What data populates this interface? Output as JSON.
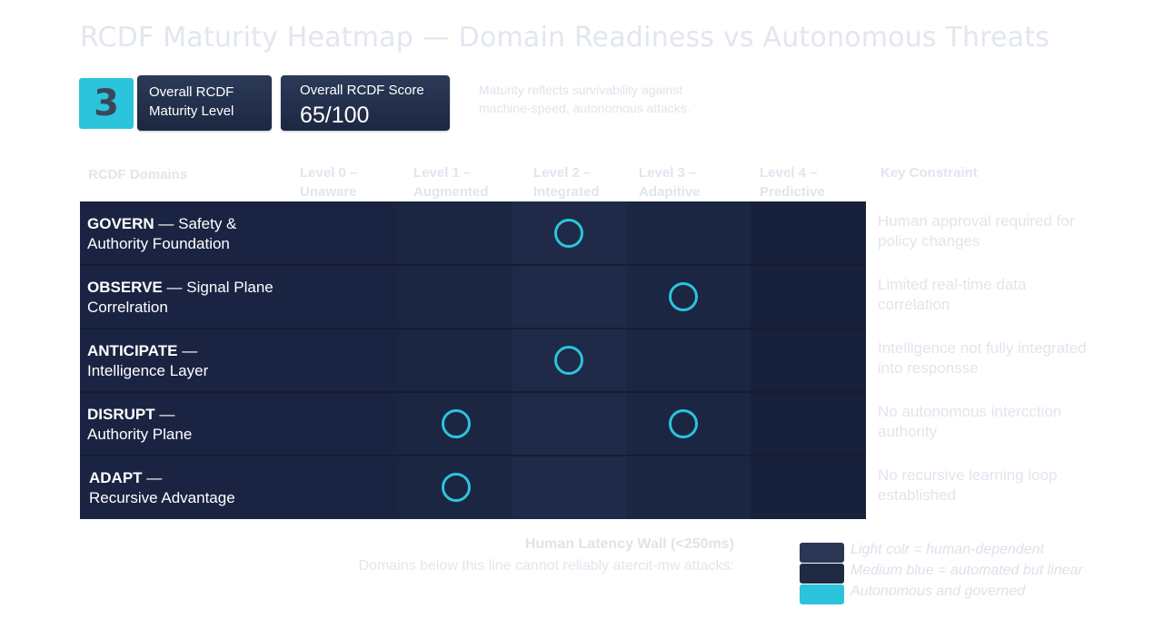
{
  "title": "RCDF Maturity Heatmap — Domain Readiness vs Autonomous Threats",
  "summary": {
    "level_value": "3",
    "level_label": "Overall RCDF Maturity Level",
    "score_label": "Overall RCDF Score",
    "score_value": "65/100",
    "note": "Maturity reflects survivability against machine-speed, autonomous attacks."
  },
  "colors": {
    "accent": "#2bc4dc",
    "grid": "#1a2440",
    "card": "#1c2742"
  },
  "headers": {
    "domains": "RCDF Domains",
    "constraint": "Key Constraint"
  },
  "chart_data": {
    "type": "table",
    "levels": [
      {
        "name": "Level 0 –",
        "sub": "Unaware"
      },
      {
        "name": "Level 1 –",
        "sub": "Augmented"
      },
      {
        "name": "Level 2 –",
        "sub": "Integrated"
      },
      {
        "name": "Level 3 –",
        "sub": "Adapitive"
      },
      {
        "name": "Level 4 –",
        "sub": "Predictive"
      }
    ],
    "domains": [
      {
        "name": "GOVERN",
        "desc": " — Safety &",
        "desc2": "Authority Foundation",
        "levels": [
          2
        ],
        "constraint": "Human approval required for policy changes"
      },
      {
        "name": "OBSERVE",
        "desc": " — Signal Plane",
        "desc2": "Correlration",
        "levels": [
          3
        ],
        "constraint": "Limited real-time data correlation"
      },
      {
        "name": "ANTICIPATE",
        "desc": " —",
        "desc2": "Intelligence Layer",
        "levels": [
          2
        ],
        "constraint": "Intelligence not fully integrated into responsse"
      },
      {
        "name": "DISRUPT",
        "desc": " —",
        "desc2": "Authority Plane",
        "levels": [
          1,
          3
        ],
        "constraint": "No autonomous intercction authority"
      },
      {
        "name": "ADAPT",
        "desc": " —",
        "desc2": "Recursive Advantage",
        "levels": [
          1
        ],
        "constraint": "No recursive learning loop established"
      }
    ]
  },
  "wall": {
    "title": "Human Latency Wall (<250ms)",
    "text": "Domains below this line cannot reliably atercit-mw attacks:"
  },
  "legend": [
    {
      "label": "Light colr = human-dependent",
      "color": "#2a3654"
    },
    {
      "label": "Medium blue = automated but linear",
      "color": "#1f2a45"
    },
    {
      "label": "Autonomous and governed",
      "color": "#2bc4dc"
    }
  ]
}
